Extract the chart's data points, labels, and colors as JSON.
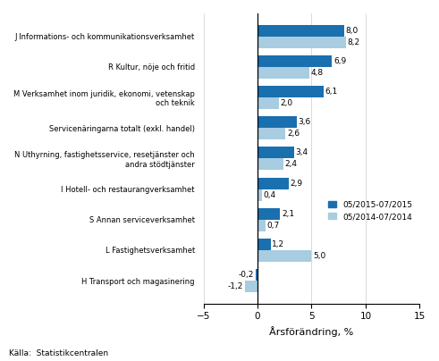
{
  "categories": [
    "J Informations- och kommunikationsverksamhet",
    "R Kultur, nöje och fritid",
    "M Verksamhet inom juridik, ekonomi, vetenskap\noch teknik",
    "Servicenäringarna totalt (exkl. handel)",
    "N Uthyrning, fastighetsservice, resetjänster och\nandra stödtjänster",
    "I Hotell- och restaurangverksamhet",
    "S Annan serviceverksamhet",
    "L Fastighetsverksamhet",
    "H Transport och magasinering"
  ],
  "values_2015": [
    8.0,
    6.9,
    6.1,
    3.6,
    3.4,
    2.9,
    2.1,
    1.2,
    -0.2
  ],
  "values_2014": [
    8.2,
    4.8,
    2.0,
    2.6,
    2.4,
    0.4,
    0.7,
    5.0,
    -1.2
  ],
  "color_2015": "#1a6faf",
  "color_2014": "#a8cce0",
  "xlabel": "Årsförändring, %",
  "xlim": [
    -5,
    15
  ],
  "xticks": [
    -5,
    0,
    5,
    10,
    15
  ],
  "legend_2015": "05/2015-07/2015",
  "legend_2014": "05/2014-07/2014",
  "source": "Källa:  Statistikcentralen",
  "bar_height": 0.38,
  "figsize": [
    4.91,
    4.04
  ],
  "dpi": 100
}
